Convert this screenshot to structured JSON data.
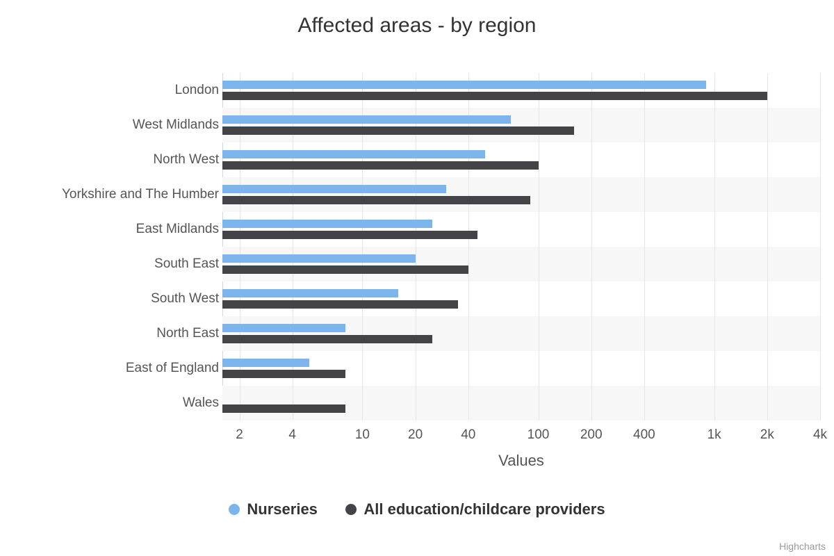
{
  "chart": {
    "title": "Affected areas - by region",
    "type": "bar",
    "background_color": "#ffffff",
    "title_fontsize": 30,
    "label_fontsize": 19,
    "axis_title_fontsize": 22,
    "plot_band_odd_color": "#f7f7f7",
    "grid_color": "#e6e6e6",
    "axis_line_color": "#ccd6eb",
    "categories": [
      "London",
      "West Midlands",
      "North West",
      "Yorkshire and The Humber",
      "East Midlands",
      "South East",
      "South West",
      "North East",
      "East of England",
      "Wales"
    ],
    "series": [
      {
        "name": "Nurseries",
        "color": "#7cb5ec",
        "values": [
          900,
          70,
          50,
          30,
          25,
          20,
          16,
          8,
          5,
          null
        ]
      },
      {
        "name": "All education/childcare providers",
        "color": "#434348",
        "values": [
          2000,
          160,
          100,
          90,
          45,
          40,
          35,
          25,
          8,
          8
        ]
      }
    ],
    "x_axis": {
      "title": "Values",
      "scale": "log",
      "min": 1.6,
      "max": 4000,
      "ticks": [
        2,
        4,
        10,
        20,
        40,
        100,
        200,
        400,
        1000,
        2000,
        4000
      ],
      "tick_labels": [
        "2",
        "4",
        "10",
        "20",
        "40",
        "100",
        "200",
        "400",
        "1k",
        "2k",
        "4k"
      ]
    },
    "credits": "Highcharts"
  }
}
